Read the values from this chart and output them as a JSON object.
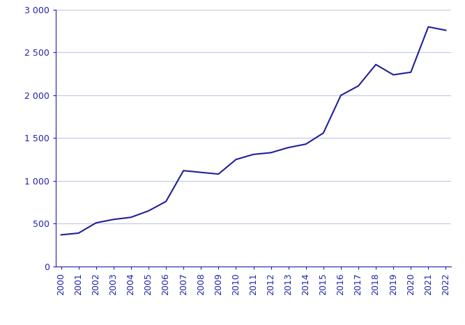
{
  "years": [
    2000,
    2001,
    2002,
    2003,
    2004,
    2005,
    2006,
    2007,
    2008,
    2009,
    2010,
    2011,
    2012,
    2013,
    2014,
    2015,
    2016,
    2017,
    2018,
    2019,
    2020,
    2021,
    2022
  ],
  "values": [
    370,
    390,
    510,
    550,
    575,
    650,
    760,
    1120,
    1100,
    1080,
    1250,
    1310,
    1330,
    1390,
    1430,
    1560,
    2000,
    2110,
    2360,
    2240,
    2270,
    2800,
    2760
  ],
  "line_color": "#1f1f9b",
  "background_color": "#ffffff",
  "grid_color": "#c0c8e8",
  "tick_color": "#2020aa",
  "spine_color": "#2020aa",
  "ylim": [
    0,
    3000
  ],
  "yticks": [
    0,
    500,
    1000,
    1500,
    2000,
    2500,
    3000
  ],
  "ytick_labels": [
    "0",
    "500",
    "1 000",
    "1 500",
    "2 000",
    "2 500",
    "3 000"
  ],
  "figsize": [
    6.67,
    4.67
  ],
  "dpi": 100
}
